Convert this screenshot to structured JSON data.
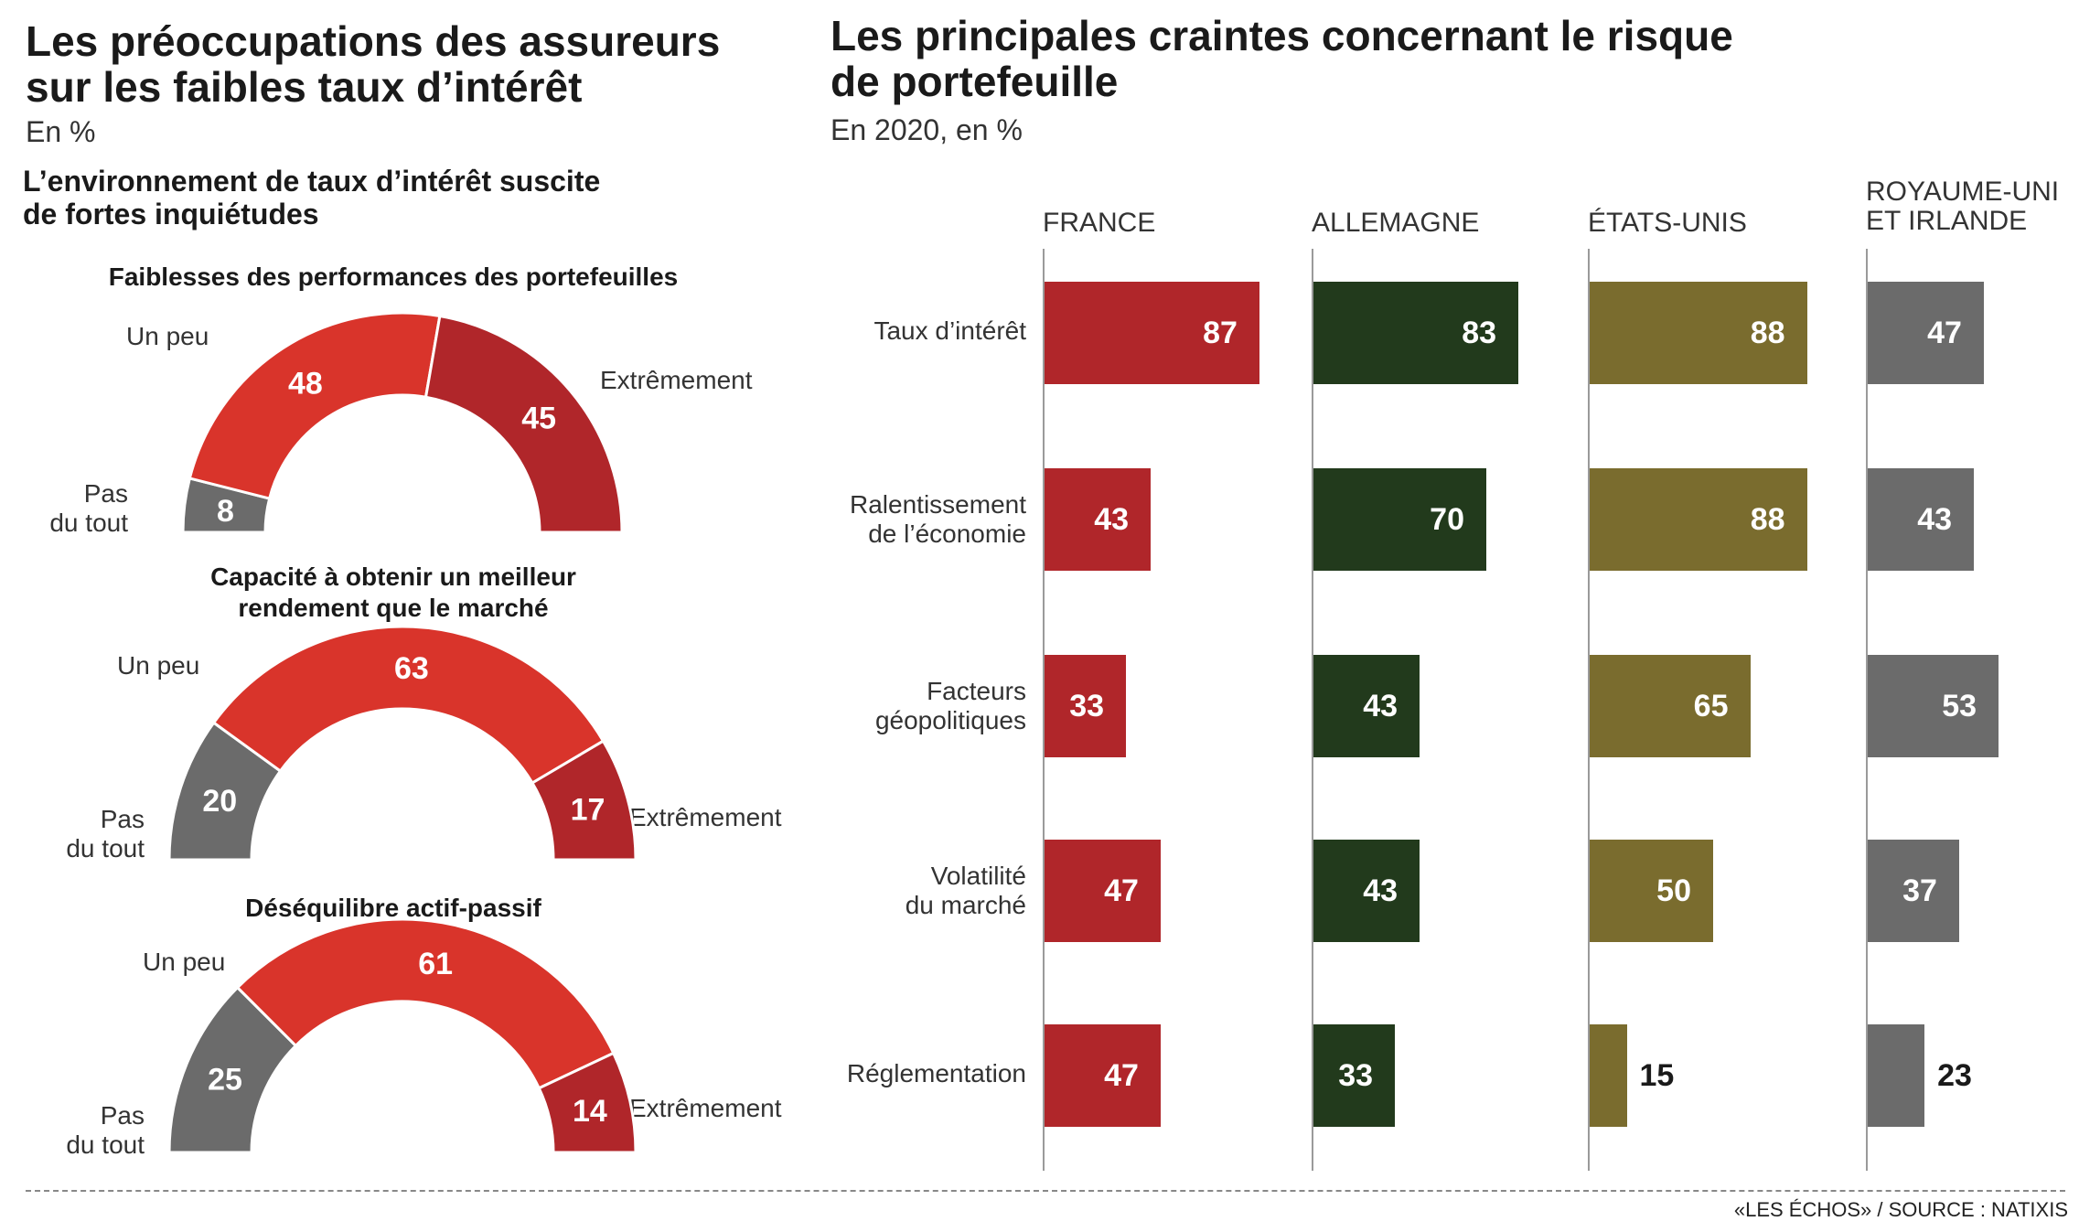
{
  "left": {
    "title_line1": "Les préoccupations des assureurs",
    "title_line2": "sur les faibles taux d’intérêt",
    "unit": "En %",
    "subtitle_line1": "L’environnement de taux d’intérêt suscite",
    "subtitle_line2": "de fortes inquiétudes"
  },
  "right": {
    "title_line1": "Les principales craintes concernant le risque",
    "title_line2": "de portefeuille",
    "unit": "En 2020, en %"
  },
  "footer": "«LES ÉCHOS» / SOURCE : NATIXIS",
  "colors": {
    "un_peu": "#d9342b",
    "extremement": "#b0262a",
    "pas_du_tout": "#6b6b6b",
    "france": "#b0262a",
    "allemagne": "#223a1c",
    "etats_unis": "#7a6c2e",
    "royaume_uni": "#6b6b6b"
  },
  "chart_data": [
    {
      "type": "pie",
      "title": "Faiblesses des performances des portefeuilles",
      "slices": [
        {
          "label_line1": "Pas",
          "label_line2": "du tout",
          "value": 8
        },
        {
          "label_line1": "Un peu",
          "label_line2": "",
          "value": 48
        },
        {
          "label_line1": "Extrêmement",
          "label_line2": "",
          "value": 45
        }
      ]
    },
    {
      "type": "pie",
      "title_line1": "Capacité à obtenir un meilleur",
      "title_line2": "rendement que le marché",
      "slices": [
        {
          "label_line1": "Pas",
          "label_line2": "du tout",
          "value": 20
        },
        {
          "label_line1": "Un peu",
          "label_line2": "",
          "value": 63
        },
        {
          "label_line1": "Extrêmement",
          "label_line2": "",
          "value": 17
        }
      ]
    },
    {
      "type": "pie",
      "title": "Déséquilibre actif-passif",
      "slices": [
        {
          "label_line1": "Pas",
          "label_line2": "du tout",
          "value": 25
        },
        {
          "label_line1": "Un peu",
          "label_line2": "",
          "value": 61
        },
        {
          "label_line1": "Extrêmement",
          "label_line2": "",
          "value": 14
        }
      ]
    },
    {
      "type": "bar",
      "categories": [
        {
          "line1": "Taux d’intérêt",
          "line2": ""
        },
        {
          "line1": "Ralentissement",
          "line2": "de l’économie"
        },
        {
          "line1": "Facteurs",
          "line2": "géopolitiques"
        },
        {
          "line1": "Volatilité",
          "line2": "du marché"
        },
        {
          "line1": "Réglementation",
          "line2": ""
        }
      ],
      "series": [
        {
          "name_line1": "FRANCE",
          "name_line2": "",
          "values": [
            87,
            43,
            33,
            47,
            47
          ]
        },
        {
          "name_line1": "ALLEMAGNE",
          "name_line2": "",
          "values": [
            83,
            70,
            43,
            43,
            33
          ]
        },
        {
          "name_line1": "ÉTATS-UNIS",
          "name_line2": "",
          "values": [
            88,
            88,
            65,
            50,
            15
          ]
        },
        {
          "name_line1": "ROYAUME-UNI",
          "name_line2": "ET IRLANDE",
          "values": [
            47,
            43,
            53,
            37,
            23
          ]
        }
      ],
      "xlim": [
        0,
        100
      ]
    }
  ]
}
